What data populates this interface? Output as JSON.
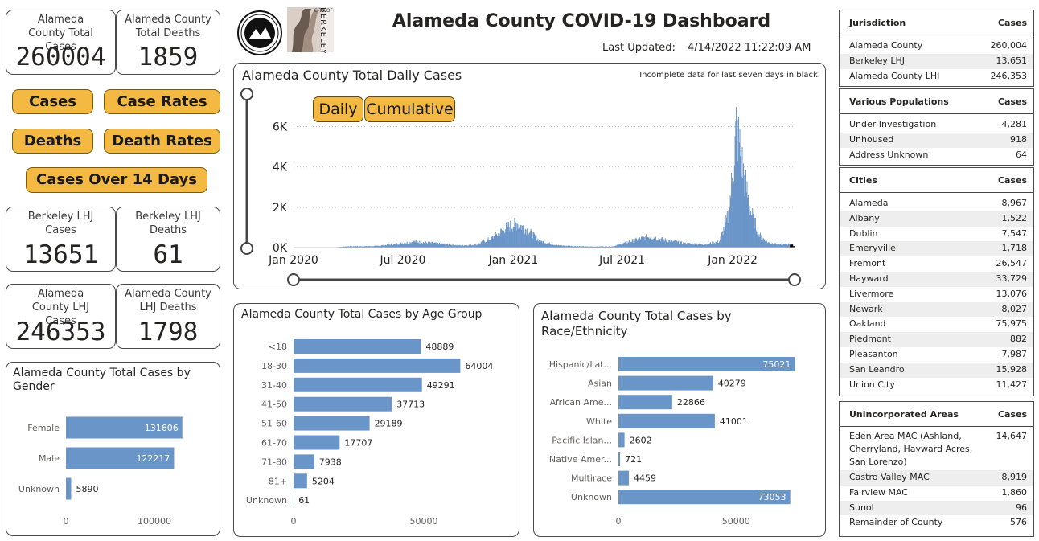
{
  "header": {
    "title": "Alameda County COVID-19 Dashboard",
    "last_updated_label": "Last Updated:",
    "last_updated_value": "4/14/2022 11:22:09 AM",
    "berkeley_logo_text": "BERKELEY",
    "berkeley_logo_city": "CITY OF"
  },
  "kpis": {
    "county_cases": {
      "title": "Alameda County Total Cases",
      "value": "260004"
    },
    "county_deaths": {
      "title": "Alameda County Total Deaths",
      "value": "1859"
    },
    "berkeley_cases": {
      "title": "Berkeley LHJ Cases",
      "value": "13651"
    },
    "berkeley_deaths": {
      "title": "Berkeley LHJ Deaths",
      "value": "61"
    },
    "lhj_cases": {
      "title": "Alameda County LHJ Cases",
      "value": "246353"
    },
    "lhj_deaths": {
      "title": "Alameda County LHJ Deaths",
      "value": "1798"
    }
  },
  "nav": {
    "cases": "Cases",
    "case_rates": "Case Rates",
    "deaths": "Deaths",
    "death_rates": "Death Rates",
    "cases_14": "Cases Over 14 Days"
  },
  "daily_chart": {
    "title": "Alameda County Total Daily Cases",
    "note": "Incomplete data for last seven days in black.",
    "toggle_daily": "Daily",
    "toggle_cumulative": "Cumulative",
    "y_ticks": [
      "0K",
      "2K",
      "4K",
      "6K"
    ],
    "x_ticks": [
      "Jan 2020",
      "Jul 2020",
      "Jan 2021",
      "Jul 2021",
      "Jan 2022"
    ],
    "bar_color": "#6a95c9",
    "incomplete_color": "#000000"
  },
  "chart_data": [
    {
      "type": "bar",
      "title": "Alameda County Total Daily Cases",
      "xlabel": "",
      "ylabel": "",
      "ylim": [
        0,
        6500
      ],
      "x_range": [
        "2020-01-01",
        "2022-04-14"
      ],
      "points": [
        [
          "2020-03-01",
          0
        ],
        [
          "2020-04-01",
          60
        ],
        [
          "2020-05-15",
          70
        ],
        [
          "2020-06-15",
          160
        ],
        [
          "2020-07-20",
          300
        ],
        [
          "2020-08-20",
          220
        ],
        [
          "2020-10-01",
          110
        ],
        [
          "2020-11-01",
          140
        ],
        [
          "2020-12-01",
          550
        ],
        [
          "2020-12-20",
          1000
        ],
        [
          "2021-01-08",
          1200
        ],
        [
          "2021-01-25",
          850
        ],
        [
          "2021-02-15",
          320
        ],
        [
          "2021-03-15",
          110
        ],
        [
          "2021-05-01",
          50
        ],
        [
          "2021-06-15",
          60
        ],
        [
          "2021-07-20",
          350
        ],
        [
          "2021-08-15",
          550
        ],
        [
          "2021-09-10",
          380
        ],
        [
          "2021-10-15",
          200
        ],
        [
          "2021-11-15",
          160
        ],
        [
          "2021-12-10",
          300
        ],
        [
          "2021-12-25",
          1600
        ],
        [
          "2022-01-03",
          4200
        ],
        [
          "2022-01-07",
          6000
        ],
        [
          "2022-01-12",
          5200
        ],
        [
          "2022-01-20",
          3500
        ],
        [
          "2022-02-01",
          1700
        ],
        [
          "2022-02-15",
          600
        ],
        [
          "2022-03-01",
          250
        ],
        [
          "2022-03-20",
          150
        ],
        [
          "2022-04-07",
          180
        ],
        [
          "2022-04-14",
          60
        ]
      ]
    },
    {
      "type": "bar",
      "title": "Alameda County Total Cases by Gender",
      "categories": [
        "Female",
        "Male",
        "Unknown"
      ],
      "values": [
        131606,
        122217,
        5890
      ],
      "x_ticks": [
        "0",
        "100000"
      ],
      "xlim": [
        0,
        150000
      ]
    },
    {
      "type": "bar",
      "title": "Alameda County Total Cases by Age Group",
      "categories": [
        "<18",
        "18-30",
        "31-40",
        "41-50",
        "51-60",
        "61-70",
        "71-80",
        "81+",
        "Unknown"
      ],
      "values": [
        48889,
        64004,
        49291,
        37713,
        29189,
        17707,
        7938,
        5204,
        61
      ],
      "x_ticks": [
        "0",
        "50000"
      ],
      "xlim": [
        0,
        75000
      ]
    },
    {
      "type": "bar",
      "title": "Alameda County Total Cases by Race/Ethnicity",
      "categories": [
        "Hispanic/Lat...",
        "Asian",
        "African Ame...",
        "White",
        "Pacific Islan...",
        "Native Amer...",
        "Multirace",
        "Unknown"
      ],
      "values": [
        75021,
        40279,
        22866,
        41001,
        2602,
        721,
        4459,
        73053
      ],
      "x_ticks": [
        "0",
        "50000"
      ],
      "xlim": [
        0,
        80000
      ]
    }
  ],
  "tables": {
    "jurisdiction": {
      "col1": "Jurisdiction",
      "col2": "Cases",
      "rows": [
        [
          "Alameda County",
          "260,004"
        ],
        [
          "Berkeley LHJ",
          "13,651"
        ],
        [
          "Alameda County LHJ",
          "246,353"
        ]
      ]
    },
    "populations": {
      "col1": "Various Populations",
      "col2": "Cases",
      "rows": [
        [
          "Under Investigation",
          "4,281"
        ],
        [
          "Unhoused",
          "918"
        ],
        [
          "Address Unknown",
          "64"
        ]
      ]
    },
    "cities": {
      "col1": "Cities",
      "col2": "Cases",
      "rows": [
        [
          "Alameda",
          "8,967"
        ],
        [
          "Albany",
          "1,522"
        ],
        [
          "Dublin",
          "7,547"
        ],
        [
          "Emeryville",
          "1,718"
        ],
        [
          "Fremont",
          "26,547"
        ],
        [
          "Hayward",
          "33,729"
        ],
        [
          "Livermore",
          "13,076"
        ],
        [
          "Newark",
          "8,027"
        ],
        [
          "Oakland",
          "75,975"
        ],
        [
          "Piedmont",
          "882"
        ],
        [
          "Pleasanton",
          "7,987"
        ],
        [
          "San Leandro",
          "15,928"
        ],
        [
          "Union City",
          "11,427"
        ]
      ]
    },
    "unincorporated": {
      "col1": "Unincorporated Areas",
      "col2": "Cases",
      "rows": [
        [
          "Eden Area MAC (Ashland, Cherryland, Hayward Acres, San Lorenzo)",
          "14,647"
        ],
        [
          "Castro Valley MAC",
          "8,919"
        ],
        [
          "Fairview MAC",
          "1,860"
        ],
        [
          "Sunol",
          "96"
        ],
        [
          "Remainder of County",
          "576"
        ]
      ]
    }
  }
}
